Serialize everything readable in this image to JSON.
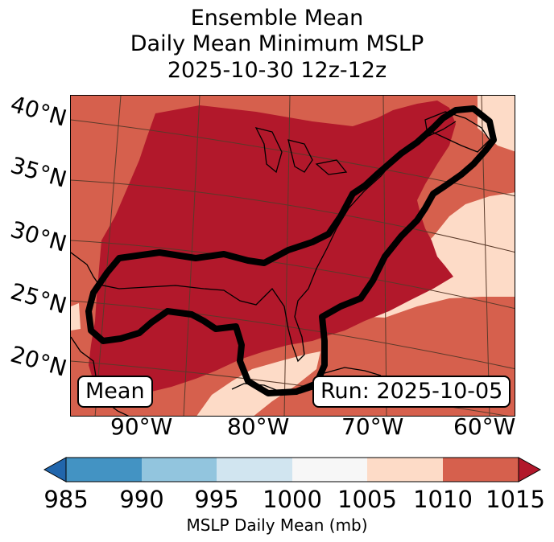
{
  "title": {
    "line1": "Ensemble Mean",
    "line2": "Daily Mean Minimum MSLP",
    "line3": "2025-10-30 12z-12z"
  },
  "map": {
    "lat_labels": [
      "40°N",
      "35°N",
      "30°N",
      "25°N",
      "20°N"
    ],
    "lon_labels": [
      "90°W",
      "80°W",
      "70°W",
      "60°W"
    ],
    "mean_label": "Mean",
    "run_label": "Run: 2025-10-05",
    "colors": {
      "c1010_1015": "#d6604d",
      "c1015_plus": "#b2182b",
      "c1005_1010": "#fddbc7",
      "contour": "#000000",
      "coast": "#000000",
      "grid": "#5a3a2a"
    }
  },
  "colorbar": {
    "ticks": [
      "985",
      "990",
      "995",
      "1000",
      "1005",
      "1010",
      "1015"
    ],
    "colors": [
      "#2166ac",
      "#4393c3",
      "#92c5de",
      "#d1e5f0",
      "#f7f7f7",
      "#fddbc7",
      "#d6604d",
      "#b2182b"
    ],
    "label": "MSLP Daily Mean (mb)"
  }
}
